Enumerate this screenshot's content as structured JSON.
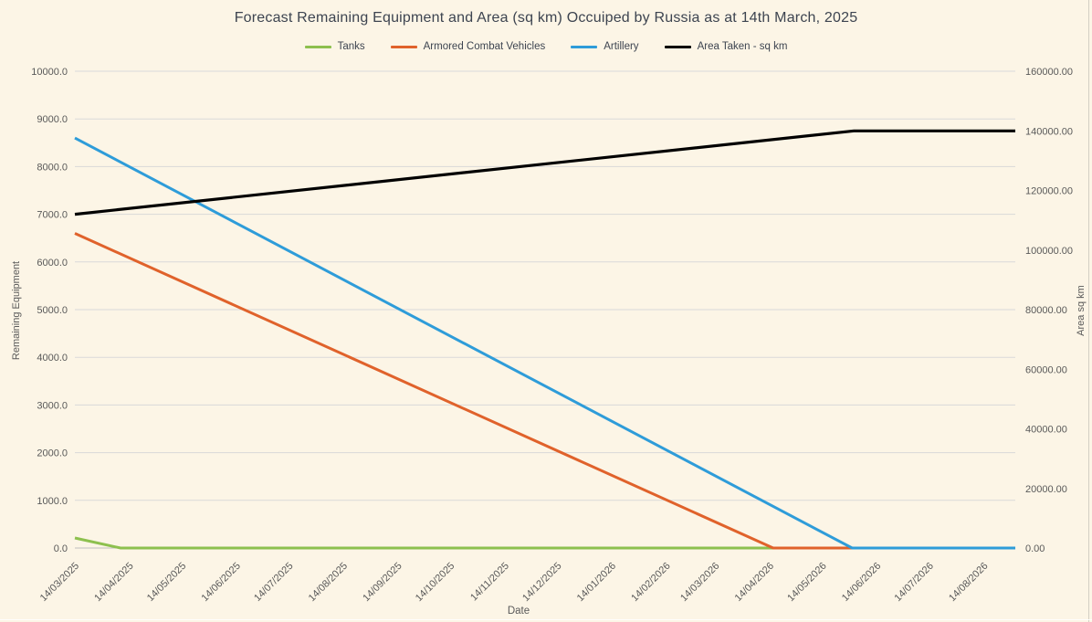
{
  "app": {
    "background_color": "#FCF5E6",
    "title_color": "#3D4450",
    "axis_label_color": "#595959"
  },
  "chart_data": {
    "type": "line",
    "title": "Forecast Remaining Equipment and Area (sq km) Occuiped by Russia as at 14th March, 2025",
    "legend_position": "top",
    "grid": {
      "horizontal": true,
      "vertical": false,
      "color": "#D9D9D9",
      "baseline_color": "#BFBFBF"
    },
    "x_axis": {
      "title": "Date",
      "type": "date",
      "first_date": "14/03/2025",
      "last_label_date": "14/08/2026",
      "span_days": 536,
      "tick_labels": [
        "14/03/2025",
        "14/04/2025",
        "14/05/2025",
        "14/06/2025",
        "14/07/2025",
        "14/08/2025",
        "14/09/2025",
        "14/10/2025",
        "14/11/2025",
        "14/12/2025",
        "14/01/2026",
        "14/02/2026",
        "14/03/2026",
        "14/04/2026",
        "14/05/2026",
        "14/06/2026",
        "14/07/2026",
        "14/08/2026"
      ],
      "tick_day_offsets": [
        0,
        31,
        61,
        92,
        122,
        153,
        184,
        214,
        245,
        275,
        306,
        337,
        365,
        396,
        426,
        457,
        487,
        518
      ]
    },
    "y_axis_left": {
      "title": "Remaining Equipment",
      "min": 0,
      "max": 10000,
      "step": 1000,
      "tick_labels": [
        "0.0",
        "1000.0",
        "2000.0",
        "3000.0",
        "4000.0",
        "5000.0",
        "6000.0",
        "7000.0",
        "8000.0",
        "9000.0",
        "10000.0"
      ]
    },
    "y_axis_right": {
      "title": "Area sq km",
      "min": 0,
      "max": 160000,
      "step": 20000,
      "tick_labels": [
        "0.00",
        "20000.00",
        "40000.00",
        "60000.00",
        "80000.00",
        "100000.00",
        "120000.00",
        "140000.00",
        "160000.00"
      ]
    },
    "series": [
      {
        "name": "Tanks",
        "color": "#8DC04E",
        "axis": "left",
        "start_value": 210,
        "end_value": 0,
        "reaches_zero_day": 26,
        "points_day_value": [
          [
            0,
            210
          ],
          [
            26,
            0
          ],
          [
            536,
            0
          ]
        ]
      },
      {
        "name": "Armored Combat Vehicles",
        "color": "#E0622B",
        "axis": "left",
        "start_value": 6600,
        "end_value": 0,
        "reaches_zero_day": 398,
        "points_day_value": [
          [
            0,
            6600
          ],
          [
            398,
            0
          ],
          [
            536,
            0
          ]
        ]
      },
      {
        "name": "Artillery",
        "color": "#2E9CD9",
        "axis": "left",
        "start_value": 8600,
        "end_value": 0,
        "reaches_zero_day": 443,
        "points_day_value": [
          [
            0,
            8600
          ],
          [
            443,
            0
          ],
          [
            536,
            0
          ]
        ]
      },
      {
        "name": "Area Taken - sq km",
        "color": "#000000",
        "axis": "right",
        "start_value": 112000,
        "end_value": 140000,
        "plateau_day": 444,
        "points_day_value": [
          [
            0,
            112000
          ],
          [
            444,
            140000
          ],
          [
            536,
            140000
          ]
        ]
      }
    ]
  }
}
